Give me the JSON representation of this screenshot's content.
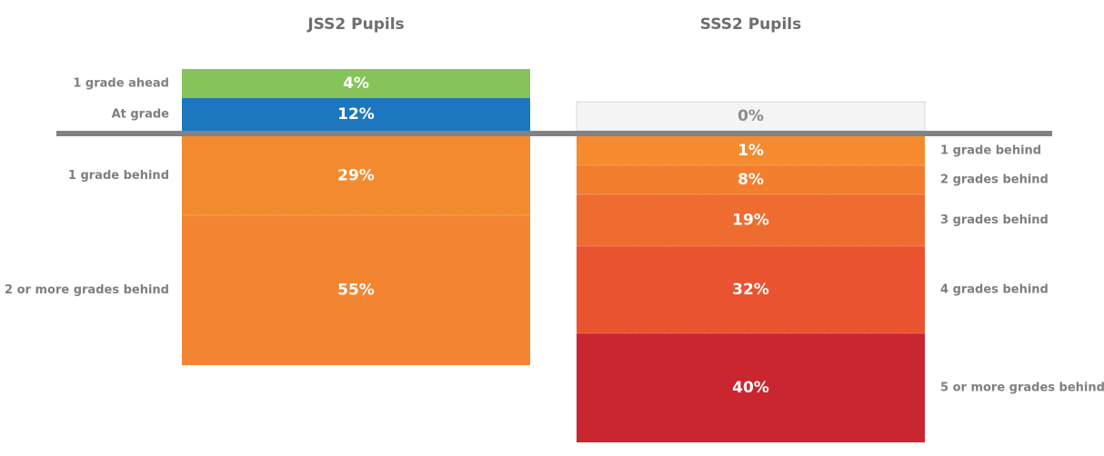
{
  "chart_data": [
    {
      "type": "diverging-stack",
      "title": "JSS2 Pupils",
      "label_side": "left",
      "above": {
        "categories": [
          "1 grade ahead",
          "At grade"
        ],
        "values": [
          4,
          12
        ],
        "value_labels": [
          "4%",
          "12%"
        ],
        "colors": [
          "#86c35a",
          "#1c77bf"
        ]
      },
      "below": {
        "categories": [
          "1 grade behind",
          "2 or more grades behind"
        ],
        "values": [
          29,
          55
        ],
        "value_labels": [
          "29%",
          "55%"
        ],
        "colors": [
          "#f48a30",
          "#f38532"
        ]
      }
    },
    {
      "type": "diverging-stack",
      "title": "SSS2 Pupils",
      "label_side": "right",
      "above": {
        "categories": [
          null
        ],
        "values": [
          0
        ],
        "value_labels": [
          "0%"
        ],
        "colors": [
          "#f4f4f4"
        ]
      },
      "below": {
        "categories": [
          "1 grade behind",
          "2 grades behind",
          "3 grades behind",
          "4 grades behind",
          "5 or more grades behind"
        ],
        "values": [
          1,
          8,
          19,
          32,
          40
        ],
        "value_labels": [
          "1%",
          "8%",
          "19%",
          "32%",
          "40%"
        ],
        "colors": [
          "#f58b2e",
          "#f27e2e",
          "#ef6c30",
          "#e9532f",
          "#c9262f"
        ]
      }
    }
  ]
}
